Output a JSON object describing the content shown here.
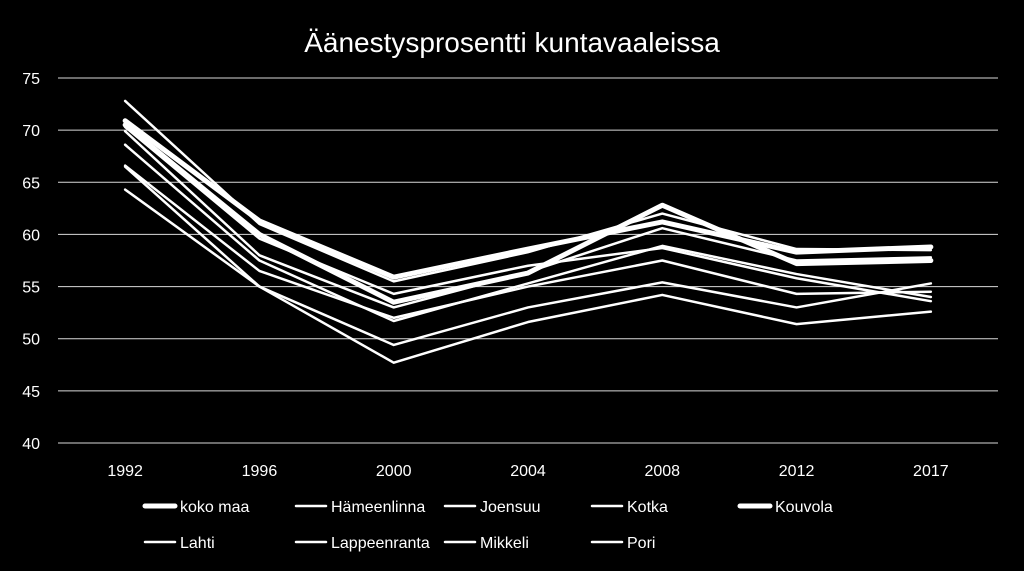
{
  "chart_data": {
    "type": "line",
    "title": "Äänestysprosentti kuntavaaleissa",
    "xlabel": "",
    "ylabel": "",
    "x": [
      "1992",
      "1996",
      "2000",
      "2004",
      "2008",
      "2012",
      "2017"
    ],
    "ylim": [
      40,
      75
    ],
    "yticks": [
      "40",
      "45",
      "50",
      "55",
      "60",
      "65",
      "70",
      "75"
    ],
    "grid": true,
    "legend": "bottom",
    "line_color": "#ffffff",
    "background": "#000000",
    "series": [
      {
        "name": "koko maa",
        "values": [
          70.9,
          61.3,
          55.9,
          58.6,
          61.2,
          58.3,
          58.8
        ],
        "weight": "thick"
      },
      {
        "name": "Hämeenlinna",
        "values": [
          72.8,
          61.0,
          55.5,
          58.3,
          62.0,
          58.6,
          58.5
        ],
        "weight": "thin"
      },
      {
        "name": "Joensuu",
        "values": [
          70.3,
          59.6,
          54.3,
          57.0,
          58.7,
          55.8,
          53.6
        ],
        "weight": "thin"
      },
      {
        "name": "Kotka",
        "values": [
          66.6,
          56.5,
          52.0,
          55.0,
          57.5,
          54.3,
          54.5
        ],
        "weight": "thin"
      },
      {
        "name": "Kouvola",
        "values": [
          70.5,
          60.0,
          53.5,
          56.3,
          62.8,
          57.2,
          57.5
        ],
        "weight": "thick"
      },
      {
        "name": "Lahti",
        "values": [
          64.3,
          55.0,
          49.4,
          53.0,
          55.4,
          53.0,
          55.3
        ],
        "weight": "thin"
      },
      {
        "name": "Lappeenranta",
        "values": [
          69.9,
          58.0,
          53.0,
          56.4,
          60.6,
          57.5,
          57.8
        ],
        "weight": "thin"
      },
      {
        "name": "Mikkeli",
        "values": [
          68.6,
          57.5,
          51.7,
          55.3,
          58.9,
          56.2,
          54.0
        ],
        "weight": "thin"
      },
      {
        "name": "Pori",
        "values": [
          66.5,
          55.0,
          47.7,
          51.6,
          54.2,
          51.4,
          52.6
        ],
        "weight": "thin"
      }
    ]
  }
}
